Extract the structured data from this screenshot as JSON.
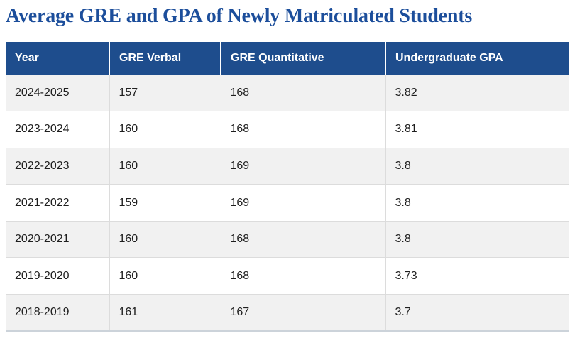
{
  "title": "Average GRE and GPA of Newly Matriculated Students",
  "theme": {
    "title_color": "#1c4e9b",
    "header_bg": "#1e4d8d",
    "header_text": "#ffffff",
    "stripe_bg": "#f1f1f1",
    "row_bg": "#ffffff",
    "border_color": "#dcdcdc",
    "rule_color": "#d9d9d9",
    "bottom_border": "#ccd3da",
    "cell_text": "#1e1e1e"
  },
  "chart_data": {
    "type": "table",
    "title": "Average GRE and GPA of Newly Matriculated Students",
    "columns": [
      "Year",
      "GRE Verbal",
      "GRE Quantitative",
      "Undergraduate GPA"
    ],
    "rows": [
      [
        "2024-2025",
        157,
        168,
        "3.82"
      ],
      [
        "2023-2024",
        160,
        168,
        "3.81"
      ],
      [
        "2022-2023",
        160,
        169,
        "3.8"
      ],
      [
        "2021-2022",
        159,
        169,
        "3.8"
      ],
      [
        "2020-2021",
        160,
        168,
        "3.8"
      ],
      [
        "2019-2020",
        160,
        168,
        "3.73"
      ],
      [
        "2018-2019",
        161,
        167,
        "3.7"
      ]
    ],
    "layout": {
      "striped": true,
      "stripe_pattern": "odd-rows-gray",
      "header_style": "dark-blue-white-text"
    }
  }
}
